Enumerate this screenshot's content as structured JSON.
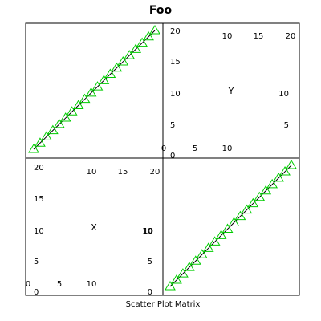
{
  "chart_data": {
    "type": "scatter",
    "title": "Foo",
    "xlabel": "Scatter Plot Matrix",
    "variables": [
      "Y",
      "X"
    ],
    "range": [
      1,
      20
    ],
    "marker": "triangle",
    "colors": {
      "marker": "#00cc00",
      "line": "#000000",
      "frame": "#000000",
      "background": "#ffffff"
    },
    "points": [
      {
        "x": 1,
        "y": 1
      },
      {
        "x": 2,
        "y": 2
      },
      {
        "x": 3,
        "y": 3
      },
      {
        "x": 4,
        "y": 4
      },
      {
        "x": 5,
        "y": 5
      },
      {
        "x": 6,
        "y": 6
      },
      {
        "x": 7,
        "y": 7
      },
      {
        "x": 8,
        "y": 8
      },
      {
        "x": 9,
        "y": 9
      },
      {
        "x": 10,
        "y": 10
      },
      {
        "x": 11,
        "y": 11
      },
      {
        "x": 12,
        "y": 12
      },
      {
        "x": 13,
        "y": 13
      },
      {
        "x": 14,
        "y": 14
      },
      {
        "x": 15,
        "y": 15
      },
      {
        "x": 16,
        "y": 16
      },
      {
        "x": 17,
        "y": 17
      },
      {
        "x": 18,
        "y": 18
      },
      {
        "x": 19,
        "y": 19
      },
      {
        "x": 20,
        "y": 20
      }
    ],
    "ticks": {
      "y_top_right": [
        "20",
        "15",
        "10",
        "5",
        "0"
      ],
      "x_top_inner": [
        "10",
        "15",
        "20"
      ],
      "x_bottom_inner_y": [
        "0",
        "5",
        "10"
      ],
      "y_inner_right": [
        "10",
        "5"
      ],
      "y_left": [
        "20",
        "15",
        "10",
        "5",
        "0"
      ],
      "x_top_inner_x": [
        "10",
        "15",
        "20"
      ],
      "x_bottom_inner_x": [
        "0",
        "5",
        "10"
      ],
      "y_inner_x": [
        "10"
      ]
    }
  }
}
